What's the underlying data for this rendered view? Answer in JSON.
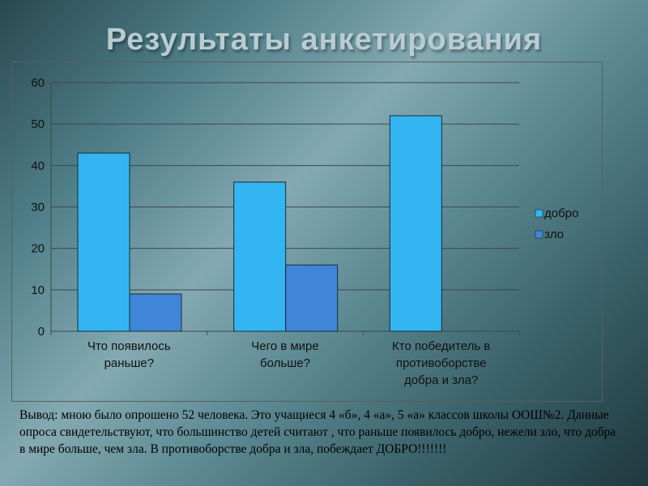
{
  "slide": {
    "title": "Результаты  анкетирования",
    "conclusion": "Вывод: мною было опрошено 52 человека. Это учащиеся 4 «б», 4 «а», 5 «а» классов школы ООШ№2. Данные опроса свидетельствуют, что большинство детей считают , что раньше появилось добро, нежели зло, что добра в мире больше, чем зла. В противоборстве  добра и зла, побеждает ДОБРО!!!!!!!"
  },
  "chart_data": {
    "type": "bar",
    "title": "",
    "xlabel": "",
    "ylabel": "",
    "ylim": [
      0,
      60
    ],
    "y_ticks": [
      "0",
      "10",
      "20",
      "30",
      "40",
      "50",
      "60"
    ],
    "grid": true,
    "legend_position": "right",
    "categories": [
      [
        "Что появилось",
        "раньше?"
      ],
      [
        "Чего в мире",
        "больше?"
      ],
      [
        "Кто победитель в",
        "противоборстве",
        "добра и зла?"
      ]
    ],
    "series": [
      {
        "name": "добро",
        "values": [
          43,
          36,
          52
        ],
        "color": "#33b5f2"
      },
      {
        "name": "зло",
        "values": [
          9,
          16,
          null
        ],
        "color": "#3f86d8"
      }
    ]
  }
}
